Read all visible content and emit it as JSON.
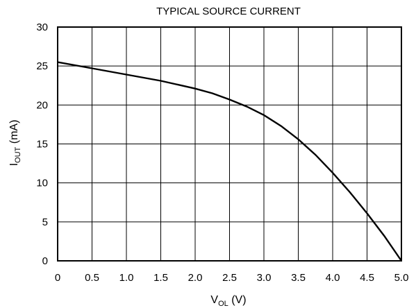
{
  "chart_data": {
    "type": "line",
    "title": "TYPICAL SOURCE CURRENT",
    "xlabel_main": "V",
    "xlabel_sub": "OL",
    "xlabel_tail": " (V)",
    "ylabel_main": "I",
    "ylabel_sub": "OUT",
    "ylabel_tail": " (mA)",
    "xlim": [
      0,
      5
    ],
    "ylim": [
      0,
      30
    ],
    "xticks": [
      "0",
      "0.5",
      "1.0",
      "1.5",
      "2.0",
      "2.5",
      "3.0",
      "3.5",
      "4.0",
      "4.5",
      "5.0"
    ],
    "yticks": [
      "0",
      "5",
      "10",
      "15",
      "20",
      "25",
      "30"
    ],
    "grid": true,
    "series": [
      {
        "x": [
          0,
          0.25,
          0.5,
          0.75,
          1.0,
          1.25,
          1.5,
          1.75,
          2.0,
          2.25,
          2.5,
          2.75,
          3.0,
          3.25,
          3.5,
          3.75,
          4.0,
          4.25,
          4.5,
          4.75,
          5.0
        ],
        "y": [
          25.5,
          25.1,
          24.7,
          24.3,
          23.9,
          23.5,
          23.1,
          22.6,
          22.1,
          21.5,
          20.7,
          19.8,
          18.7,
          17.3,
          15.6,
          13.6,
          11.3,
          8.8,
          6.1,
          3.2,
          0.0
        ]
      }
    ]
  }
}
